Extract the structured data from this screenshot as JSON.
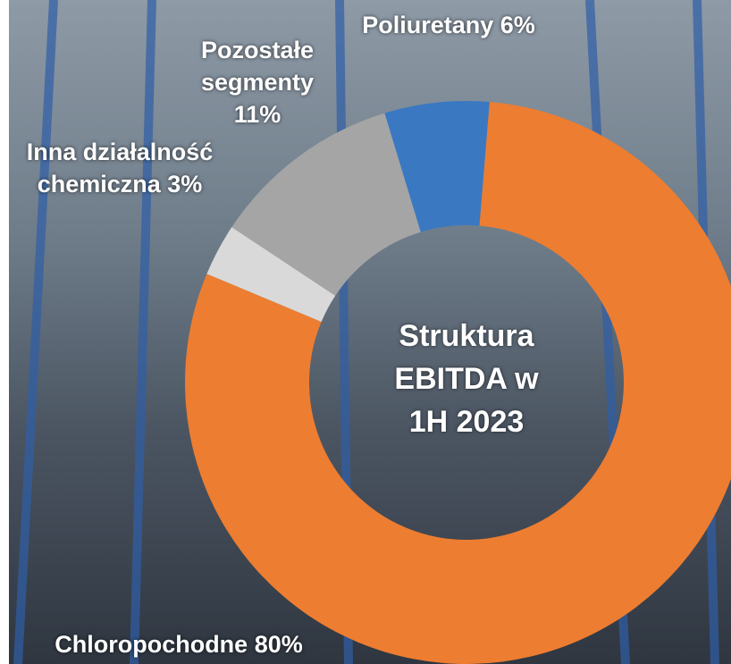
{
  "chart_data": {
    "type": "donut",
    "title": "Struktura EBITDA w 1H 2023",
    "categories": [
      "Chloropochodne",
      "Inna działalność chemiczna",
      "Pozostałe segmenty",
      "Poliuretany"
    ],
    "values": [
      80,
      3,
      11,
      6
    ],
    "value_labels": [
      "80%",
      "3%",
      "11%",
      "6%"
    ],
    "colors": [
      "#ed7d31",
      "#d9d9d9",
      "#a5a5a5",
      "#3a78c2"
    ]
  }
}
